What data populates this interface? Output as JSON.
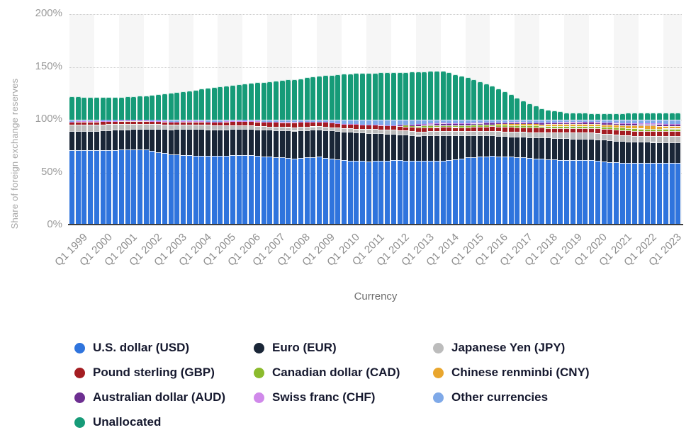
{
  "chart_data": {
    "type": "bar",
    "stacked": true,
    "title": "",
    "ylabel": "Share of foreign exchange reserves",
    "xlabel": "Currency",
    "ylim": [
      0,
      200
    ],
    "y_tick_labels": [
      "0%",
      "50%",
      "100%",
      "150%",
      "200%"
    ],
    "y_tick_values": [
      0,
      50,
      100,
      150,
      200
    ],
    "gridline_values": [
      50,
      100,
      150,
      200
    ],
    "grid": "dotted horizontal lines, alternating vertical year bands",
    "legend_position": "bottom",
    "bars": "quarterly",
    "quarterly_bars": 99,
    "x_range": [
      "Q1 1999",
      "Q3 2023"
    ],
    "x_tick_labels": [
      "Q1 1999",
      "Q1 2000",
      "Q1 2001",
      "Q1 2002",
      "Q1 2003",
      "Q1 2004",
      "Q1 2005",
      "Q1 2006",
      "Q1 2007",
      "Q1 2008",
      "Q1 2009",
      "Q1 2010",
      "Q1 2011",
      "Q1 2012",
      "Q1 2013",
      "Q1 2014",
      "Q1 2015",
      "Q1 2016",
      "Q1 2017",
      "Q1 2018",
      "Q1 2019",
      "Q1 2020",
      "Q1 2021",
      "Q1 2022",
      "Q1 2023"
    ],
    "years": [
      1999,
      2000,
      2001,
      2002,
      2003,
      2004,
      2005,
      2006,
      2007,
      2008,
      2009,
      2010,
      2011,
      2012,
      2013,
      2014,
      2015,
      2016,
      2017,
      2018,
      2019,
      2020,
      2021,
      2022,
      2023
    ],
    "value_note": "percent share; quarterly bar values estimated from chart, linearly interpolated between Q1 anchors per year",
    "series": [
      {
        "name": "U.S. dollar (USD)",
        "color": "#2f74dd",
        "anchors_q1_by_year": [
          71.2,
          71.1,
          71.5,
          71.5,
          67.1,
          65.9,
          65.9,
          66.5,
          65.0,
          63.4,
          64.8,
          61.6,
          60.7,
          61.5,
          61.2,
          60.9,
          64.2,
          65.6,
          64.6,
          62.8,
          61.7,
          61.8,
          59.4,
          58.8,
          59.0
        ]
      },
      {
        "name": "Euro (EUR)",
        "color": "#1a2637",
        "anchors_q1_by_year": [
          18.1,
          18.3,
          19.2,
          19.7,
          23.8,
          25.2,
          24.8,
          24.8,
          25.3,
          26.2,
          25.9,
          27.3,
          26.8,
          25.0,
          23.7,
          24.3,
          20.8,
          19.4,
          19.3,
          20.4,
          20.6,
          20.1,
          20.6,
          20.1,
          19.8
        ]
      },
      {
        "name": "Japanese Yen (JPY)",
        "color": "#bcbcbc",
        "anchors_q1_by_year": [
          6.0,
          6.1,
          5.3,
          4.9,
          4.4,
          4.3,
          4.0,
          3.5,
          3.1,
          3.2,
          3.2,
          3.0,
          3.7,
          4.0,
          3.9,
          3.9,
          4.0,
          4.3,
          4.6,
          4.6,
          5.3,
          5.8,
          5.9,
          5.4,
          5.5
        ]
      },
      {
        "name": "Pound sterling (GBP)",
        "color": "#a41d22",
        "anchors_q1_by_year": [
          2.7,
          2.8,
          2.7,
          2.8,
          2.8,
          2.8,
          3.4,
          3.8,
          4.4,
          4.7,
          4.3,
          4.3,
          4.1,
          3.9,
          4.0,
          3.9,
          3.9,
          4.4,
          4.3,
          4.5,
          4.5,
          4.5,
          4.7,
          4.9,
          4.9
        ]
      },
      {
        "name": "Canadian dollar (CAD)",
        "color": "#8bbb2d",
        "anchors_q1_by_year": [
          0,
          0,
          0,
          0,
          0,
          0,
          0,
          0,
          0,
          0,
          0,
          0,
          0,
          0,
          1.4,
          1.9,
          1.9,
          1.9,
          1.9,
          1.9,
          1.9,
          1.8,
          2.1,
          2.4,
          2.4
        ]
      },
      {
        "name": "Chinese renminbi (CNY)",
        "color": "#e9a62d",
        "anchors_q1_by_year": [
          0,
          0,
          0,
          0,
          0,
          0,
          0,
          0,
          0,
          0,
          0,
          0,
          0,
          0,
          0,
          0,
          0,
          0,
          1.1,
          1.4,
          1.9,
          2.0,
          2.4,
          2.8,
          2.6
        ]
      },
      {
        "name": "Australian dollar (AUD)",
        "color": "#6d2f91",
        "anchors_q1_by_year": [
          0,
          0,
          0,
          0,
          0,
          0,
          0,
          0,
          0,
          0,
          0,
          0,
          0,
          0,
          1.5,
          1.8,
          1.8,
          1.7,
          1.8,
          1.7,
          1.7,
          1.7,
          1.8,
          1.9,
          1.9
        ]
      },
      {
        "name": "Swiss franc (CHF)",
        "color": "#d089ea",
        "anchors_q1_by_year": [
          0.3,
          0.3,
          0.3,
          0.3,
          0.2,
          0.2,
          0.1,
          0.2,
          0.2,
          0.2,
          0.1,
          0.1,
          0.1,
          0.3,
          0.2,
          0.3,
          0.3,
          0.2,
          0.2,
          0.2,
          0.2,
          0.2,
          0.2,
          0.2,
          0.2
        ]
      },
      {
        "name": "Other currencies",
        "color": "#7fa9e8",
        "anchors_q1_by_year": [
          1.7,
          1.4,
          1.0,
          0.8,
          1.7,
          1.6,
          1.8,
          1.2,
          2.0,
          2.3,
          1.7,
          3.7,
          4.6,
          5.3,
          4.1,
          3.0,
          3.1,
          2.5,
          2.2,
          2.5,
          2.2,
          2.1,
          2.9,
          3.5,
          3.7
        ]
      },
      {
        "name": "Unallocated",
        "color": "#169b78",
        "anchors_q1_by_year": [
          22,
          21.5,
          21.5,
          23,
          25.5,
          28.5,
          31.5,
          34,
          36.5,
          38.5,
          41.5,
          43.5,
          44.5,
          45,
          45.5,
          46.5,
          40,
          32.5,
          21,
          10.5,
          6.8,
          6.3,
          6.3,
          6.6,
          6.5
        ]
      }
    ]
  }
}
